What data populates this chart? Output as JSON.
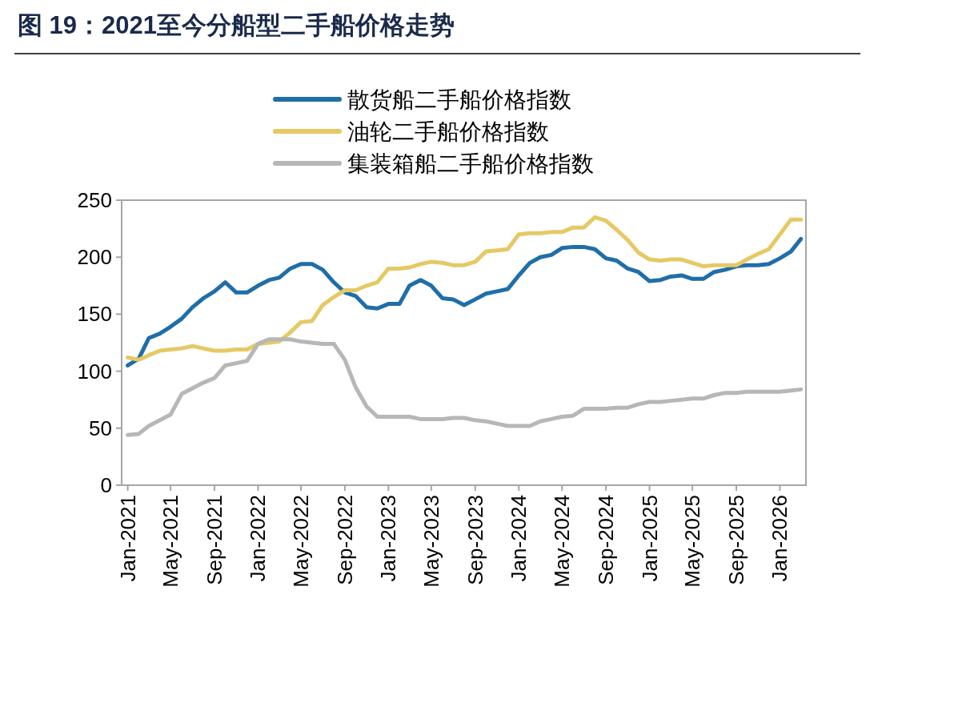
{
  "chart_data": {
    "type": "line",
    "title": "图 19：2021至今分船型二手船价格走势",
    "x": [
      "2021-01",
      "2021-02",
      "2021-03",
      "2021-04",
      "2021-05",
      "2021-06",
      "2021-07",
      "2021-08",
      "2021-09",
      "2021-10",
      "2021-11",
      "2021-12",
      "2022-01",
      "2022-02",
      "2022-03",
      "2022-04",
      "2022-05",
      "2022-06",
      "2022-07",
      "2022-08",
      "2022-09",
      "2022-10",
      "2022-11",
      "2022-12",
      "2023-01",
      "2023-02",
      "2023-03",
      "2023-04",
      "2023-05",
      "2023-06",
      "2023-07",
      "2023-08",
      "2023-09",
      "2023-10",
      "2023-11",
      "2023-12",
      "2024-01",
      "2024-02",
      "2024-03",
      "2024-04",
      "2024-05",
      "2024-06",
      "2024-07",
      "2024-08",
      "2024-09",
      "2024-10",
      "2024-11",
      "2024-12",
      "2025-01",
      "2025-02",
      "2025-03",
      "2025-04",
      "2025-05",
      "2025-06",
      "2025-07",
      "2025-08",
      "2025-09",
      "2025-10",
      "2025-11",
      "2025-12",
      "2026-01",
      "2026-02",
      "2026-03"
    ],
    "series": [
      {
        "name": "散货船二手船价格指数",
        "color": "#1f6ea8",
        "values": [
          105,
          111,
          129,
          133,
          139,
          146,
          156,
          164,
          170,
          178,
          169,
          169,
          175,
          180,
          182,
          190,
          194,
          194,
          189,
          178,
          169,
          166,
          156,
          155,
          159,
          159,
          175,
          180,
          175,
          164,
          163,
          158,
          163,
          168,
          170,
          172,
          184,
          195,
          200,
          202,
          208,
          209,
          209,
          207,
          199,
          197,
          190,
          187,
          179,
          180,
          183,
          184,
          181,
          181,
          187,
          189,
          192,
          193,
          193,
          194,
          199,
          205,
          216
        ]
      },
      {
        "name": "油轮二手船价格指数",
        "color": "#e5c965",
        "values": [
          112,
          110,
          114,
          118,
          119,
          120,
          122,
          120,
          118,
          118,
          119,
          119,
          124,
          125,
          126,
          134,
          143,
          144,
          158,
          165,
          171,
          171,
          175,
          178,
          190,
          190,
          191,
          194,
          196,
          195,
          193,
          193,
          196,
          205,
          206,
          207,
          220,
          221,
          221,
          222,
          222,
          226,
          226,
          235,
          232,
          224,
          215,
          204,
          198,
          197,
          198,
          198,
          195,
          192,
          193,
          193,
          193,
          198,
          203,
          207,
          220,
          233,
          233
        ]
      },
      {
        "name": "集装箱船二手船价格指数",
        "color": "#b7b7b7",
        "values": [
          44,
          45,
          52,
          57,
          62,
          80,
          85,
          90,
          94,
          105,
          107,
          109,
          124,
          128,
          128,
          128,
          126,
          125,
          124,
          124,
          110,
          86,
          69,
          60,
          60,
          60,
          60,
          58,
          58,
          58,
          59,
          59,
          57,
          56,
          54,
          52,
          52,
          52,
          56,
          58,
          60,
          61,
          67,
          67,
          67,
          68,
          68,
          71,
          73,
          73,
          74,
          75,
          76,
          76,
          79,
          81,
          81,
          82,
          82,
          82,
          82,
          83,
          84
        ]
      }
    ],
    "xlim": [
      "2020-12-15",
      "2026-03-15"
    ],
    "xticks": [
      {
        "value": "2021-01",
        "label": "Jan-2021"
      },
      {
        "value": "2021-05",
        "label": "May-2021"
      },
      {
        "value": "2021-09",
        "label": "Sep-2021"
      },
      {
        "value": "2022-01",
        "label": "Jan-2022"
      },
      {
        "value": "2022-05",
        "label": "May-2022"
      },
      {
        "value": "2022-09",
        "label": "Sep-2022"
      },
      {
        "value": "2023-01",
        "label": "Jan-2023"
      },
      {
        "value": "2023-05",
        "label": "May-2023"
      },
      {
        "value": "2023-09",
        "label": "Sep-2023"
      },
      {
        "value": "2024-01",
        "label": "Jan-2024"
      },
      {
        "value": "2024-05",
        "label": "May-2024"
      },
      {
        "value": "2024-09",
        "label": "Sep-2024"
      },
      {
        "value": "2025-01",
        "label": "Jan-2025"
      },
      {
        "value": "2025-05",
        "label": "May-2025"
      },
      {
        "value": "2025-09",
        "label": "Sep-2025"
      },
      {
        "value": "2026-01",
        "label": "Jan-2026"
      }
    ],
    "ylim": [
      0,
      250
    ],
    "yticks": [
      0,
      50,
      100,
      150,
      200,
      250
    ],
    "legend": "top",
    "line_style": "solid"
  }
}
